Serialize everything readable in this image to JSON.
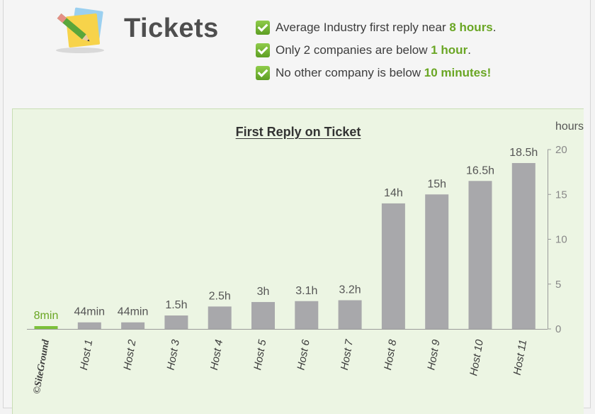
{
  "header": {
    "title": "Tickets",
    "icon": "sticky-notes-pencil-icon",
    "bullets": [
      {
        "text": "Average Industry first reply near ",
        "highlight": "8 hours",
        "suffix": "."
      },
      {
        "text": "Only 2 companies are below ",
        "highlight": "1 hour",
        "suffix": "."
      },
      {
        "text": "No other company is below ",
        "highlight": "10 minutes!",
        "suffix": ""
      }
    ]
  },
  "colors": {
    "accent_green": "#6aa624",
    "bar_gray": "#a8a8ab",
    "bar_highlight": "#7cc03a",
    "panel_bg": "#ecf5e3"
  },
  "chart_data": {
    "type": "bar",
    "title": "First Reply on Ticket",
    "ylabel": "hours",
    "ylim": [
      0,
      20
    ],
    "yticks": [
      0,
      5,
      10,
      15,
      20
    ],
    "grid": false,
    "categories": [
      "SiteGround",
      "Host 1",
      "Host 2",
      "Host 3",
      "Host 4",
      "Host 5",
      "Host 6",
      "Host 7",
      "Host 8",
      "Host 9",
      "Host 10",
      "Host 11"
    ],
    "values": [
      0.133,
      0.733,
      0.733,
      1.5,
      2.5,
      3,
      3.1,
      3.2,
      14,
      15,
      16.5,
      18.5
    ],
    "data_labels": [
      "8min",
      "44min",
      "44min",
      "1.5h",
      "2.5h",
      "3h",
      "3.1h",
      "3.2h",
      "14h",
      "15h",
      "16.5h",
      "18.5h"
    ],
    "highlight_index": 0,
    "first_category_logo": "©SiteGround"
  }
}
